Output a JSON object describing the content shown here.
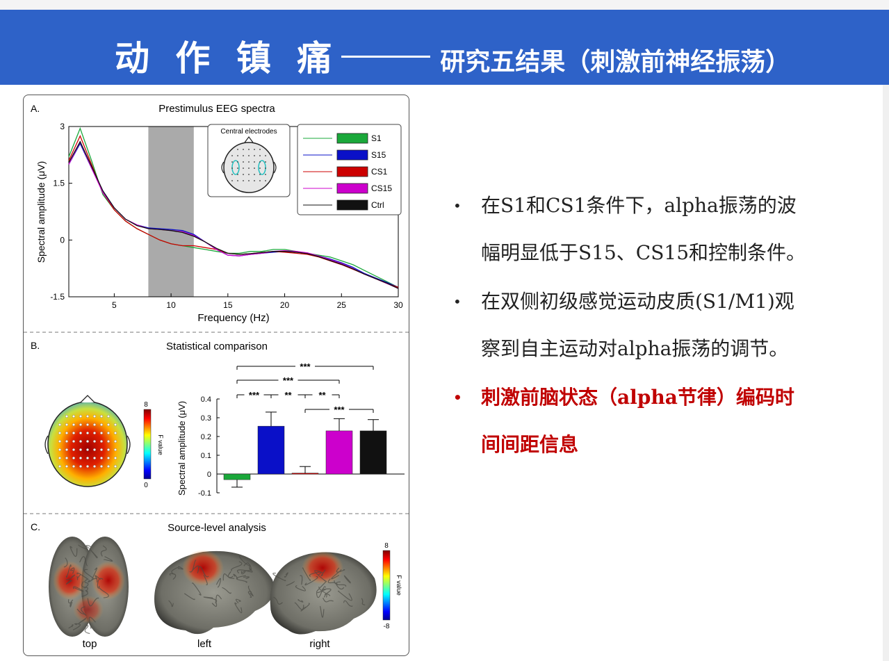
{
  "slide": {
    "title_main": "动 作 镇 痛",
    "title_sub": "研究五结果（刺激前神经振荡）"
  },
  "panel_a": {
    "letter": "A.",
    "title": "Prestimulus EEG spectra",
    "inset_label": "Central electrodes",
    "ylabel": "Spectral amplitude (μV)",
    "xlabel": "Frequency (Hz)"
  },
  "panel_b": {
    "letter": "B.",
    "title": "Statistical comparison",
    "colorbar_label": "F value",
    "colorbar_max": "8",
    "colorbar_min": "0",
    "ylabel": "Spectral amplitude (μV)"
  },
  "panel_c": {
    "letter": "C.",
    "title": "Source-level analysis",
    "views": [
      "top",
      "left",
      "right"
    ],
    "colorbar_label": "F value",
    "colorbar_max": "8",
    "colorbar_min": "-8"
  },
  "bullets": [
    {
      "text": "在S1和CS1条件下，alpha振荡的波幅明显低于S15、CS15和控制条件。",
      "line1": "在S1和CS1条件下，alpha振荡的波",
      "line2": "幅明显低于S15、CS15和控制条件。",
      "highlight": false
    },
    {
      "text": "在双侧初级感觉运动皮质(S1/M1)观察到自主运动对alpha振荡的调节。",
      "line1": "在双侧初级感觉运动皮质(S1/M1)观",
      "line2": "察到自主运动对alpha振荡的调节。",
      "highlight": false
    },
    {
      "text": "刺激前脑状态（alpha节律）编码时间间距信息",
      "line1": "刺激前脑状态（alpha节律）编码时",
      "line2": "间间距信息",
      "highlight": true
    }
  ],
  "colors": {
    "banner": "#2e62c8",
    "highlight_text": "#c00000",
    "S1": "#1aa83a",
    "S15": "#0a10c8",
    "CS1": "#cc0000",
    "CS15": "#cc00cc",
    "Ctrl": "#111111"
  },
  "chart_data": [
    {
      "type": "line",
      "title": "Prestimulus EEG spectra",
      "xlabel": "Frequency (Hz)",
      "ylabel": "Spectral amplitude (μV)",
      "xlim": [
        1,
        30
      ],
      "ylim": [
        -1.5,
        3
      ],
      "xticks": [
        5,
        10,
        15,
        20,
        25,
        30
      ],
      "yticks": [
        -1.5,
        0,
        1.5,
        3
      ],
      "highlight_band": [
        8,
        12
      ],
      "x": [
        1,
        2,
        3,
        4,
        5,
        6,
        7,
        8,
        9,
        10,
        11,
        12,
        13,
        14,
        15,
        16,
        17,
        18,
        19,
        20,
        21,
        22,
        23,
        24,
        25,
        26,
        27,
        28,
        29,
        30
      ],
      "series": [
        {
          "name": "S1",
          "color": "#1aa83a",
          "values": [
            2.2,
            2.95,
            2.1,
            1.2,
            0.8,
            0.5,
            0.3,
            0.15,
            0.0,
            -0.1,
            -0.15,
            -0.2,
            -0.25,
            -0.3,
            -0.35,
            -0.35,
            -0.3,
            -0.3,
            -0.25,
            -0.25,
            -0.3,
            -0.35,
            -0.4,
            -0.45,
            -0.55,
            -0.65,
            -0.8,
            -0.95,
            -1.1,
            -1.25
          ]
        },
        {
          "name": "S15",
          "color": "#0a10c8",
          "values": [
            2.0,
            2.55,
            1.9,
            1.3,
            0.85,
            0.55,
            0.4,
            0.32,
            0.3,
            0.28,
            0.25,
            0.15,
            -0.05,
            -0.25,
            -0.4,
            -0.42,
            -0.38,
            -0.35,
            -0.32,
            -0.3,
            -0.32,
            -0.35,
            -0.42,
            -0.5,
            -0.6,
            -0.72,
            -0.88,
            -1.0,
            -1.12,
            -1.25
          ]
        },
        {
          "name": "CS1",
          "color": "#cc0000",
          "values": [
            2.1,
            2.75,
            2.0,
            1.25,
            0.8,
            0.5,
            0.3,
            0.15,
            0.0,
            -0.1,
            -0.15,
            -0.15,
            -0.2,
            -0.25,
            -0.35,
            -0.38,
            -0.36,
            -0.33,
            -0.3,
            -0.32,
            -0.35,
            -0.38,
            -0.45,
            -0.55,
            -0.65,
            -0.77,
            -0.9,
            -1.02,
            -1.15,
            -1.25
          ]
        },
        {
          "name": "CS15",
          "color": "#cc00cc",
          "values": [
            2.0,
            2.6,
            1.9,
            1.25,
            0.85,
            0.55,
            0.4,
            0.3,
            0.28,
            0.25,
            0.22,
            0.12,
            -0.05,
            -0.25,
            -0.4,
            -0.42,
            -0.38,
            -0.35,
            -0.3,
            -0.28,
            -0.3,
            -0.34,
            -0.42,
            -0.52,
            -0.62,
            -0.75,
            -0.9,
            -1.02,
            -1.15,
            -1.28
          ]
        },
        {
          "name": "Ctrl",
          "color": "#111111",
          "values": [
            2.05,
            2.6,
            1.95,
            1.3,
            0.85,
            0.55,
            0.38,
            0.3,
            0.28,
            0.25,
            0.2,
            0.1,
            -0.05,
            -0.22,
            -0.35,
            -0.38,
            -0.36,
            -0.33,
            -0.3,
            -0.3,
            -0.32,
            -0.36,
            -0.44,
            -0.54,
            -0.64,
            -0.76,
            -0.9,
            -1.02,
            -1.14,
            -1.28
          ]
        }
      ],
      "legend": "top-right"
    },
    {
      "type": "bar",
      "title": "Statistical comparison",
      "ylabel": "Spectral amplitude (μV)",
      "ylim": [
        -0.1,
        0.4
      ],
      "yticks": [
        -0.1,
        0,
        0.1,
        0.2,
        0.3,
        0.4
      ],
      "categories": [
        "S1",
        "S15",
        "CS1",
        "CS15",
        "Ctrl"
      ],
      "values": [
        -0.03,
        0.255,
        0.005,
        0.23,
        0.23
      ],
      "errors": [
        0.04,
        0.075,
        0.035,
        0.065,
        0.06
      ],
      "significance": [
        {
          "from": "S1",
          "to": "Ctrl",
          "label": "***"
        },
        {
          "from": "S1",
          "to": "CS15",
          "label": "***"
        },
        {
          "from": "S1",
          "to": "S15",
          "label": "***"
        },
        {
          "from": "S15",
          "to": "CS1",
          "label": "**"
        },
        {
          "from": "CS1",
          "to": "CS15",
          "label": "**"
        },
        {
          "from": "CS1",
          "to": "Ctrl",
          "label": "***"
        }
      ]
    }
  ]
}
